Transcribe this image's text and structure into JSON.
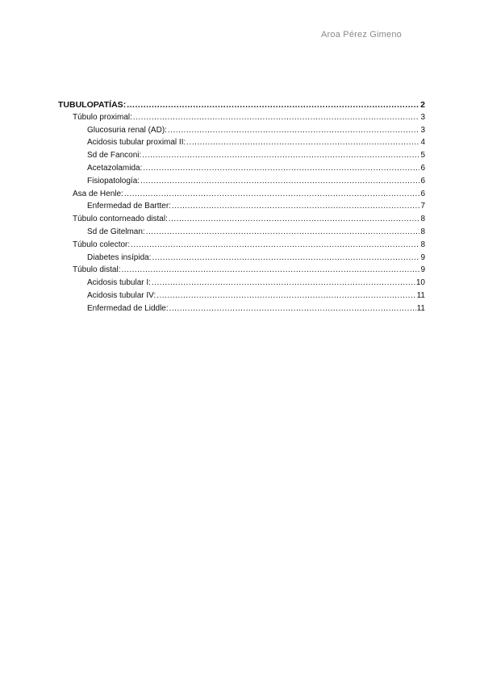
{
  "header": {
    "author": "Aroa Pérez Gimeno"
  },
  "toc": [
    {
      "level": 0,
      "title": "TUBULOPATÍAS:",
      "page": "2"
    },
    {
      "level": 1,
      "title": "Túbulo proximal:",
      "page": "3"
    },
    {
      "level": 2,
      "title": "Glucosuria renal (AD):",
      "page": "3"
    },
    {
      "level": 2,
      "title": "Acidosis tubular proximal II:",
      "page": "4"
    },
    {
      "level": 2,
      "title": "Sd de Fanconi:",
      "page": "5"
    },
    {
      "level": 2,
      "title": "Acetazolamida:",
      "page": "6"
    },
    {
      "level": 2,
      "title": "Fisiopatología:",
      "page": "6"
    },
    {
      "level": 1,
      "title": "Asa de Henle:",
      "page": "6"
    },
    {
      "level": 2,
      "title": "Enfermedad de Bartter:",
      "page": "7"
    },
    {
      "level": 1,
      "title": "Túbulo contorneado distal:",
      "page": "8"
    },
    {
      "level": 2,
      "title": "Sd de Gitelman:",
      "page": "8"
    },
    {
      "level": 1,
      "title": "Túbulo colector:",
      "page": "8"
    },
    {
      "level": 2,
      "title": "Diabetes insípida:",
      "page": "9"
    },
    {
      "level": 1,
      "title": "Túbulo distal:",
      "page": "9"
    },
    {
      "level": 2,
      "title": "Acidosis tubular I:",
      "page": "10"
    },
    {
      "level": 2,
      "title": "Acidosis tubular IV:",
      "page": "11"
    },
    {
      "level": 2,
      "title": "Enfermedad de Liddle:",
      "page": "11"
    }
  ]
}
